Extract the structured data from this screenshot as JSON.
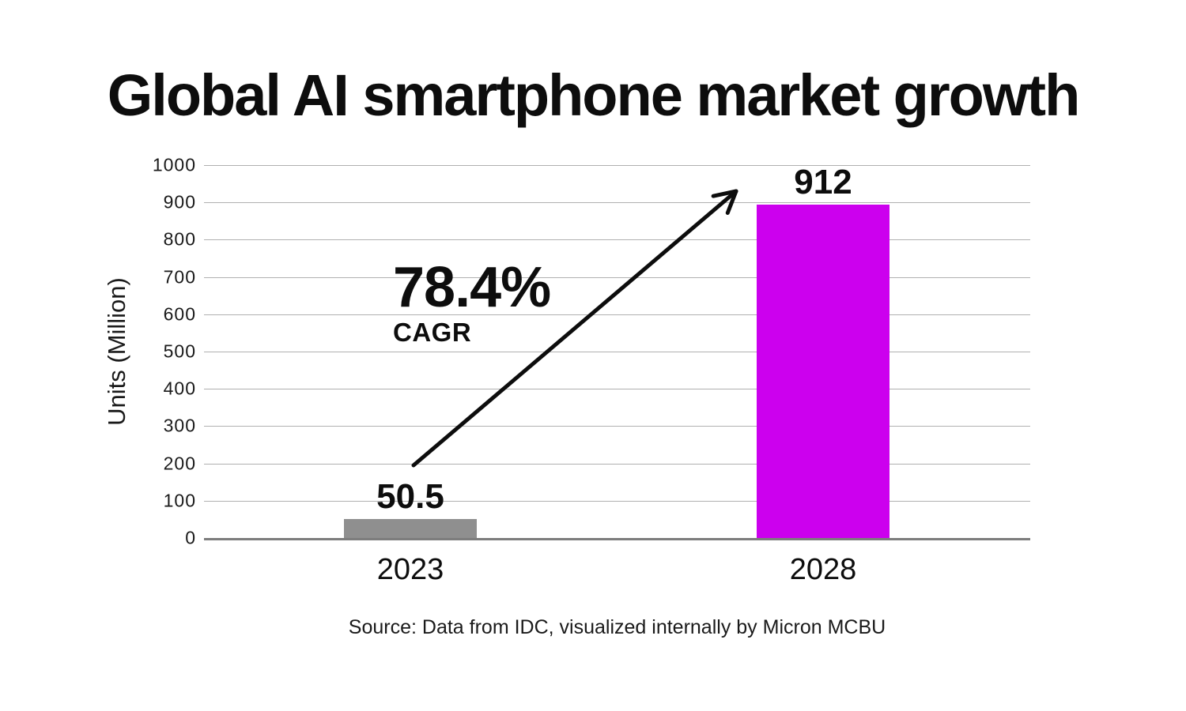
{
  "header": {
    "title": "Global AI smartphone market growth"
  },
  "footer": {
    "source": "Source: Data from IDC, visualized internally by Micron MCBU"
  },
  "colors": {
    "bar_2023": "#8f8f8f",
    "bar_2028": "#cc00ee",
    "text": "#0d0d0d",
    "gridline": "#b0b0b0",
    "axis_line": "#7d7d7d"
  },
  "chart_data": {
    "type": "bar",
    "title": "Global AI smartphone market growth",
    "categories": [
      "2023",
      "2028"
    ],
    "values": [
      50.5,
      912
    ],
    "data_labels": [
      "50.5",
      "912"
    ],
    "bar_colors": [
      "#8f8f8f",
      "#cc00ee"
    ],
    "xlabel": "",
    "ylabel": "Units (Million)",
    "ylim": [
      0,
      1000
    ],
    "yticks": [
      0,
      100,
      200,
      300,
      400,
      500,
      600,
      700,
      800,
      900,
      1000
    ],
    "grid": "horizontal",
    "legend": "none",
    "annotation": {
      "text": "78.4%",
      "subtext": "CAGR",
      "arrow": "diagonal arrow from 2023 bar up to 2028 bar"
    }
  }
}
